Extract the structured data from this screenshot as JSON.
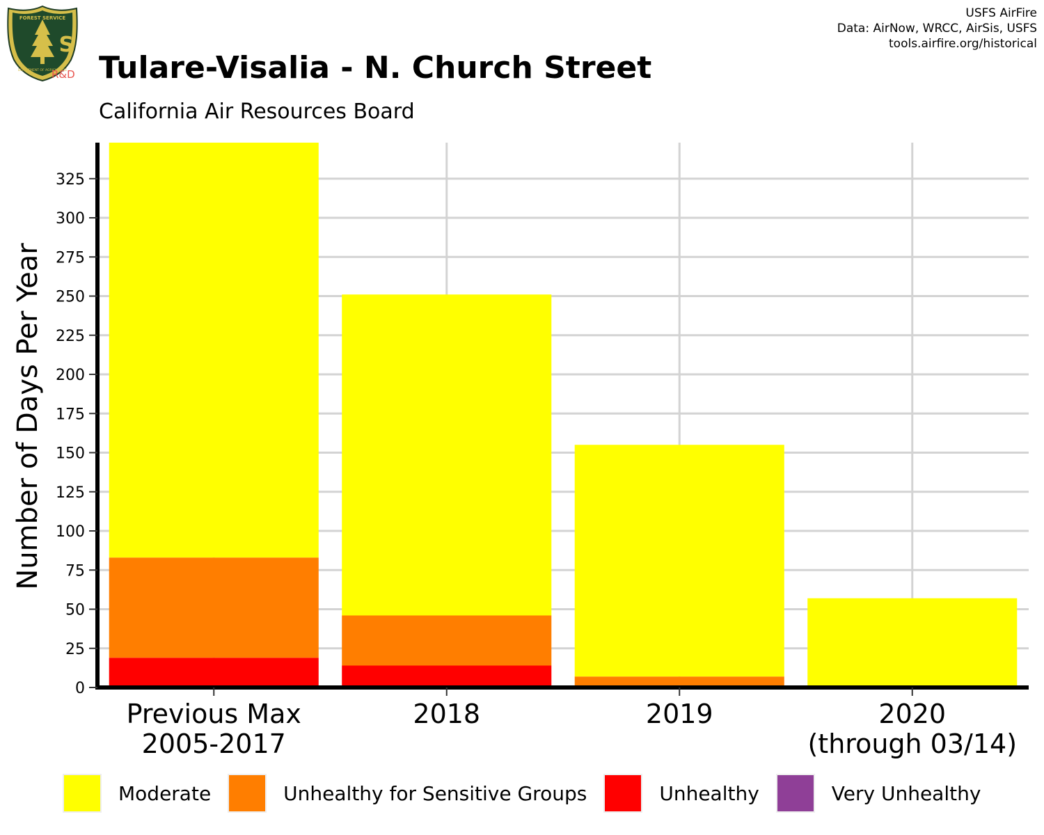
{
  "header": {
    "title": "Tulare-Visalia - N. Church Street",
    "subtitle": "California Air Resources Board",
    "credits": [
      "USFS AirFire",
      "Data: AirNow, WRCC, AirSis, USFS",
      "tools.airfire.org/historical"
    ],
    "logo": {
      "arc_top": "FOREST SERVICE",
      "letters": "U S",
      "arc_bottom": "DEPARTMENT OF AGRICULTURE",
      "rd": "R&D",
      "icon": "usfs-shield-icon"
    }
  },
  "chart_data": {
    "type": "bar",
    "stacked": true,
    "categories": [
      [
        "Previous Max",
        "2005-2017"
      ],
      [
        "2018"
      ],
      [
        "2019"
      ],
      [
        "2020",
        "(through 03/14)"
      ]
    ],
    "ylabel": "Number of Days Per Year",
    "xlabel": "",
    "ylim": [
      0,
      348
    ],
    "yticks": [
      0,
      25,
      50,
      75,
      100,
      125,
      150,
      175,
      200,
      225,
      250,
      275,
      300,
      325
    ],
    "grid": true,
    "legend_position": "bottom",
    "series": [
      {
        "name": "Unhealthy",
        "color": "#FF0000",
        "values": [
          19,
          14,
          0,
          0
        ]
      },
      {
        "name": "Unhealthy for Sensitive Groups",
        "color": "#FF7E00",
        "values": [
          64,
          32,
          7,
          0
        ]
      },
      {
        "name": "Moderate",
        "color": "#FFFF00",
        "values": [
          265,
          205,
          148,
          57
        ]
      },
      {
        "name": "Very Unhealthy",
        "color": "#8F3F97",
        "values": [
          0,
          0,
          0,
          0
        ]
      }
    ],
    "legend_order": [
      "Moderate",
      "Unhealthy for Sensitive Groups",
      "Unhealthy",
      "Very Unhealthy"
    ]
  }
}
